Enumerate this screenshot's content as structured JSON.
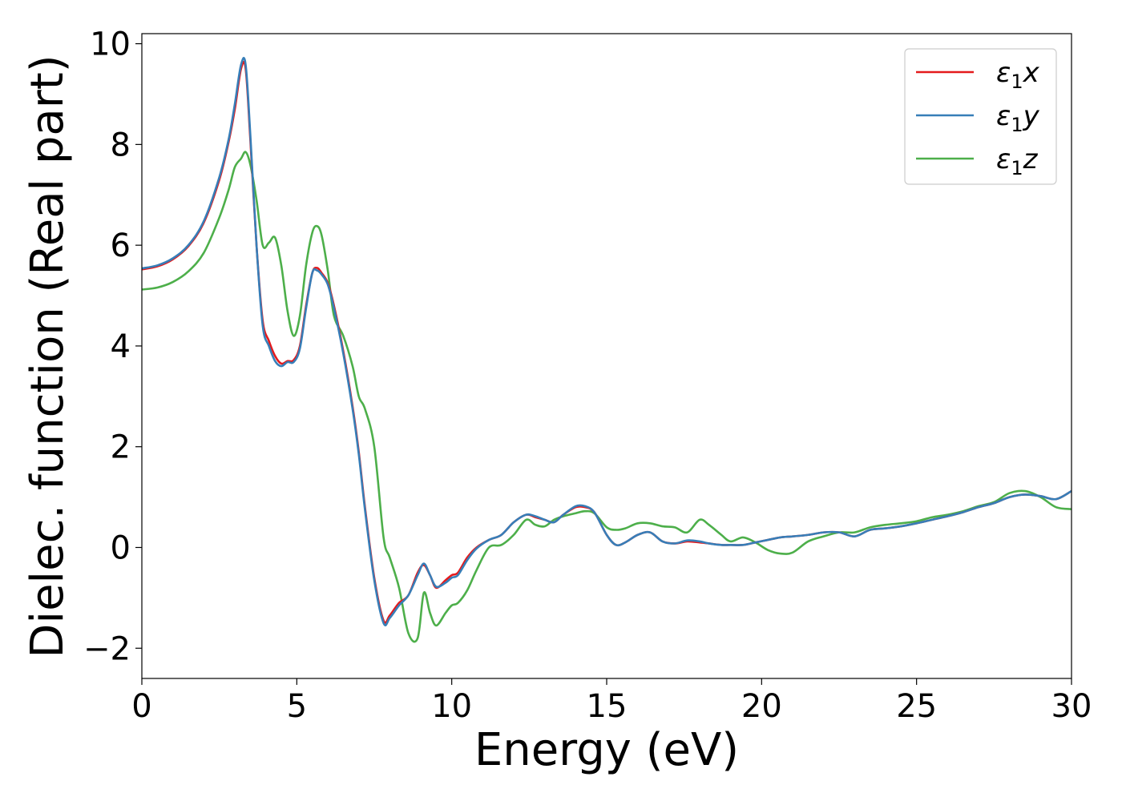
{
  "chart_data": {
    "type": "line",
    "title": "",
    "xlabel": "Energy (eV)",
    "ylabel": "Dielec. function (Real part)",
    "xlim": [
      0,
      30
    ],
    "ylim": [
      -2.6,
      10.2
    ],
    "xticks": [
      0,
      5,
      10,
      15,
      20,
      25,
      30
    ],
    "yticks": [
      -2,
      0,
      2,
      4,
      6,
      8,
      10
    ],
    "xtick_labels": [
      "0",
      "5",
      "10",
      "15",
      "20",
      "25",
      "30"
    ],
    "ytick_labels": [
      "−2",
      "0",
      "2",
      "4",
      "6",
      "8",
      "10"
    ],
    "grid": false,
    "legend_position": "top-right",
    "series": [
      {
        "name": "ε₁x",
        "symbol": "ε",
        "subscript": "1",
        "axis": "x",
        "color": "#e41a1c",
        "x": [
          0,
          0.5,
          1.0,
          1.5,
          2.0,
          2.5,
          2.8,
          3.0,
          3.2,
          3.35,
          3.5,
          3.7,
          3.9,
          4.1,
          4.3,
          4.5,
          4.7,
          4.9,
          5.1,
          5.3,
          5.5,
          5.65,
          5.8,
          6.0,
          6.2,
          6.5,
          6.8,
          7.0,
          7.2,
          7.5,
          7.8,
          8.0,
          8.3,
          8.6,
          8.9,
          9.1,
          9.3,
          9.5,
          9.8,
          10.0,
          10.2,
          10.5,
          10.8,
          11.2,
          11.6,
          12.0,
          12.4,
          12.7,
          13.0,
          13.3,
          13.6,
          14.0,
          14.3,
          14.6,
          15.0,
          15.3,
          15.6,
          16.0,
          16.4,
          16.8,
          17.2,
          17.6,
          18.0,
          18.3,
          18.7,
          19.0,
          19.4,
          19.8,
          20.2,
          20.6,
          21.0,
          21.5,
          22.0,
          22.5,
          23.0,
          23.5,
          24.0,
          24.5,
          25.0,
          25.5,
          26.0,
          26.5,
          27.0,
          27.5,
          28.0,
          28.5,
          29.0,
          29.5,
          30.0
        ],
        "y": [
          5.52,
          5.58,
          5.72,
          5.98,
          6.45,
          7.3,
          8.05,
          8.7,
          9.5,
          9.5,
          8.1,
          6.0,
          4.5,
          4.1,
          3.8,
          3.65,
          3.7,
          3.72,
          4.0,
          4.8,
          5.45,
          5.55,
          5.45,
          5.25,
          4.8,
          3.9,
          2.8,
          1.9,
          0.8,
          -0.6,
          -1.45,
          -1.35,
          -1.1,
          -0.95,
          -0.5,
          -0.35,
          -0.55,
          -0.8,
          -0.65,
          -0.55,
          -0.5,
          -0.2,
          0.0,
          0.15,
          0.25,
          0.5,
          0.65,
          0.6,
          0.55,
          0.5,
          0.65,
          0.8,
          0.8,
          0.7,
          0.25,
          0.05,
          0.1,
          0.25,
          0.3,
          0.12,
          0.08,
          0.12,
          0.1,
          0.08,
          0.05,
          0.05,
          0.05,
          0.1,
          0.15,
          0.2,
          0.22,
          0.25,
          0.3,
          0.3,
          0.22,
          0.35,
          0.38,
          0.42,
          0.48,
          0.55,
          0.62,
          0.7,
          0.8,
          0.88,
          1.0,
          1.05,
          1.02,
          0.96,
          1.12
        ]
      },
      {
        "name": "ε₁y",
        "symbol": "ε",
        "subscript": "1",
        "axis": "y",
        "color": "#377eb8",
        "x": [
          0,
          0.5,
          1.0,
          1.5,
          2.0,
          2.5,
          2.8,
          3.0,
          3.2,
          3.35,
          3.5,
          3.7,
          3.9,
          4.1,
          4.3,
          4.5,
          4.7,
          4.9,
          5.1,
          5.3,
          5.5,
          5.65,
          5.8,
          6.0,
          6.2,
          6.5,
          6.8,
          7.0,
          7.2,
          7.5,
          7.8,
          8.0,
          8.3,
          8.6,
          8.9,
          9.1,
          9.3,
          9.5,
          9.8,
          10.0,
          10.2,
          10.5,
          10.8,
          11.2,
          11.6,
          12.0,
          12.4,
          12.7,
          13.0,
          13.3,
          13.6,
          14.0,
          14.3,
          14.6,
          15.0,
          15.3,
          15.6,
          16.0,
          16.4,
          16.8,
          17.2,
          17.6,
          18.0,
          18.3,
          18.7,
          19.0,
          19.4,
          19.8,
          20.2,
          20.6,
          21.0,
          21.5,
          22.0,
          22.5,
          23.0,
          23.5,
          24.0,
          24.5,
          25.0,
          25.5,
          26.0,
          26.5,
          27.0,
          27.5,
          28.0,
          28.5,
          29.0,
          29.5,
          30.0
        ],
        "y": [
          5.54,
          5.6,
          5.74,
          6.0,
          6.48,
          7.35,
          8.1,
          8.8,
          9.58,
          9.58,
          8.2,
          6.0,
          4.4,
          4.0,
          3.7,
          3.6,
          3.68,
          3.68,
          3.95,
          4.75,
          5.45,
          5.5,
          5.42,
          5.22,
          4.75,
          3.85,
          2.75,
          1.85,
          0.75,
          -0.65,
          -1.5,
          -1.4,
          -1.15,
          -0.95,
          -0.55,
          -0.32,
          -0.55,
          -0.78,
          -0.7,
          -0.6,
          -0.55,
          -0.25,
          -0.02,
          0.15,
          0.25,
          0.5,
          0.65,
          0.62,
          0.55,
          0.5,
          0.65,
          0.82,
          0.82,
          0.7,
          0.25,
          0.05,
          0.1,
          0.25,
          0.3,
          0.12,
          0.08,
          0.14,
          0.12,
          0.08,
          0.05,
          0.05,
          0.05,
          0.1,
          0.15,
          0.2,
          0.22,
          0.25,
          0.3,
          0.3,
          0.22,
          0.35,
          0.38,
          0.42,
          0.48,
          0.55,
          0.62,
          0.7,
          0.8,
          0.88,
          1.0,
          1.05,
          1.02,
          0.96,
          1.12
        ]
      },
      {
        "name": "ε₁z",
        "symbol": "ε",
        "subscript": "1",
        "axis": "z",
        "color": "#4daf4a",
        "x": [
          0,
          0.5,
          1.0,
          1.5,
          2.0,
          2.5,
          2.8,
          3.0,
          3.2,
          3.35,
          3.5,
          3.7,
          3.9,
          4.1,
          4.3,
          4.5,
          4.7,
          4.9,
          5.1,
          5.3,
          5.5,
          5.65,
          5.8,
          6.0,
          6.2,
          6.5,
          6.8,
          7.0,
          7.2,
          7.5,
          7.8,
          8.0,
          8.3,
          8.6,
          8.9,
          9.1,
          9.3,
          9.5,
          9.8,
          10.0,
          10.2,
          10.5,
          10.8,
          11.2,
          11.6,
          12.0,
          12.4,
          12.7,
          13.0,
          13.3,
          13.6,
          14.0,
          14.3,
          14.6,
          15.0,
          15.3,
          15.6,
          16.0,
          16.4,
          16.8,
          17.2,
          17.6,
          18.0,
          18.3,
          18.7,
          19.0,
          19.4,
          19.8,
          20.2,
          20.6,
          21.0,
          21.5,
          22.0,
          22.5,
          23.0,
          23.5,
          24.0,
          24.5,
          25.0,
          25.5,
          26.0,
          26.5,
          27.0,
          27.5,
          28.0,
          28.5,
          29.0,
          29.5,
          30.0
        ],
        "y": [
          5.12,
          5.16,
          5.27,
          5.48,
          5.85,
          6.55,
          7.1,
          7.55,
          7.72,
          7.85,
          7.6,
          6.9,
          6.0,
          6.05,
          6.15,
          5.6,
          4.7,
          4.2,
          4.6,
          5.6,
          6.25,
          6.38,
          6.2,
          5.5,
          4.6,
          4.2,
          3.6,
          3.0,
          2.75,
          2.0,
          0.2,
          -0.2,
          -0.8,
          -1.7,
          -1.8,
          -0.9,
          -1.3,
          -1.55,
          -1.3,
          -1.15,
          -1.1,
          -0.85,
          -0.45,
          0.0,
          0.05,
          0.25,
          0.55,
          0.45,
          0.42,
          0.55,
          0.62,
          0.68,
          0.72,
          0.68,
          0.4,
          0.35,
          0.38,
          0.48,
          0.48,
          0.42,
          0.4,
          0.3,
          0.55,
          0.45,
          0.25,
          0.12,
          0.2,
          0.1,
          -0.05,
          -0.12,
          -0.1,
          0.12,
          0.22,
          0.3,
          0.3,
          0.4,
          0.45,
          0.48,
          0.52,
          0.6,
          0.65,
          0.72,
          0.82,
          0.9,
          1.08,
          1.12,
          1.0,
          0.8,
          0.76
        ]
      }
    ]
  }
}
